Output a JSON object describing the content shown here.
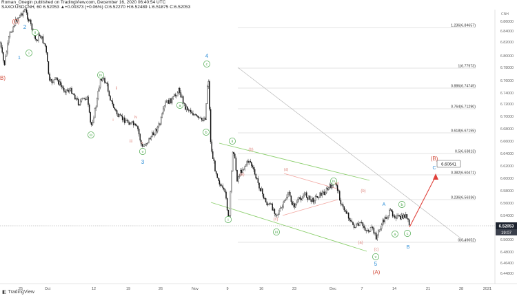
{
  "header": {
    "line1": "Roman_Onegin published on TradingView.com, December 16, 2020 06:40:54 UTC",
    "line2": "SAXO:USDCNH, 60  6.52053  ▲+0.00373 (+0.06%)  O:6.52270  H:6.52489  L:6.51875  C:6.52053"
  },
  "watermark": "TradingView",
  "price_axis": {
    "currency": "CNH",
    "labels": [
      "6.86000",
      "6.84000",
      "6.82000",
      "6.80000",
      "6.78000",
      "6.76000",
      "6.74000",
      "6.72000",
      "6.70000",
      "6.68000",
      "6.66000",
      "6.64000",
      "6.62000",
      "6.60000",
      "6.58000",
      "6.56000",
      "6.54000",
      "6.52000",
      "6.50000",
      "6.48000",
      "6.46400",
      "6.44800"
    ],
    "current_price": "6.52053",
    "countdown": "19:07"
  },
  "date_axis": [
    "25",
    "Oct",
    "12",
    "19",
    "26",
    "Nov",
    "9",
    "16",
    "23",
    "Dec",
    "7",
    "14",
    "21",
    "28",
    "2021"
  ],
  "fib_levels": [
    {
      "label": "1.236(6.84657)"
    },
    {
      "label": "1(6.77973)"
    },
    {
      "label": "0.886(6.74745)"
    },
    {
      "label": "0.764(6.71290)"
    },
    {
      "label": "0.618(6.67155)"
    },
    {
      "label": "0.5(6.63813)"
    },
    {
      "label": "0.382(6.60471)"
    },
    {
      "label": "0.236(6.56336)"
    },
    {
      "label": "0(6.49652)"
    }
  ],
  "target_price": "6.60641",
  "wave_labels": {
    "C_paren_red": "(C)",
    "B_paren_left": "B)",
    "two": "2",
    "one": "1",
    "ii_a": "ii",
    "i_a": "i",
    "iii_a": "iii",
    "iv_a": "iv",
    "v_a": "v",
    "iii_b": "iii",
    "i_b": "i",
    "ii_b": "ii",
    "iii_c": "iii",
    "iv_b": "iv",
    "v_b": "v",
    "three": "3",
    "four": "4",
    "a_g": "a",
    "b_g": "b",
    "c_g": "c",
    "a_r": "(a)",
    "b_r": "(b)",
    "c_r": "(c)",
    "d_r": "(d)",
    "e_r": "(e)",
    "ii_ral": "ii",
    "i_ral": "i",
    "iii_ral": "iii",
    "iv_ral": "iv",
    "b_r2": "(b)",
    "a_r2": "(a)",
    "c_r2": "(c)",
    "five": "5",
    "A_paren": "(A)",
    "A_blue": "A",
    "b_g2": "b",
    "a_g2": "a",
    "c_g2": "c",
    "B_blue": "B",
    "C_blue": "C",
    "B_paren": "(B)",
    "v_small": "v"
  },
  "colors": {
    "candle": "#111111",
    "fib_line": "#c8c8c8",
    "channel": "#8ccf6e",
    "wave_green": "#4aa84a",
    "wave_blue": "#2f8fd8",
    "wave_red": "#d24b3a",
    "wave_pink": "#e08a82",
    "arrow": "#e0413a",
    "price_tag_bg": "#1e2430"
  }
}
